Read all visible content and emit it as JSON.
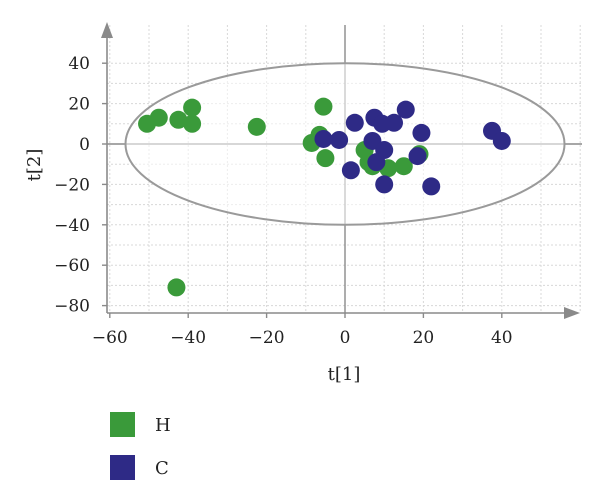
{
  "chart_data": {
    "type": "scatter",
    "title": "",
    "xlabel": "t[1]",
    "ylabel": "t[2]",
    "xlim": [
      -60,
      60
    ],
    "ylim": [
      -80,
      40
    ],
    "xticks": [
      -60,
      -40,
      -20,
      0,
      20,
      40
    ],
    "yticks": [
      40,
      20,
      0,
      -20,
      -40,
      -60,
      -80
    ],
    "grid": true,
    "confidence_ellipse": {
      "center": [
        0,
        0
      ],
      "radii": [
        56,
        40
      ]
    },
    "legend_position": "bottom-left",
    "series": [
      {
        "name": "H",
        "color": "#3a9a3a",
        "points": [
          {
            "x": -50.5,
            "y": 10
          },
          {
            "x": -47.5,
            "y": 13
          },
          {
            "x": -42.5,
            "y": 12
          },
          {
            "x": -39,
            "y": 18
          },
          {
            "x": -39,
            "y": 10
          },
          {
            "x": -22.5,
            "y": 8.5
          },
          {
            "x": -5.5,
            "y": 18.5
          },
          {
            "x": -8.5,
            "y": 0.5
          },
          {
            "x": -6.5,
            "y": 4.5
          },
          {
            "x": -5,
            "y": -7
          },
          {
            "x": 5,
            "y": -3
          },
          {
            "x": 6,
            "y": -9
          },
          {
            "x": 7,
            "y": -11
          },
          {
            "x": 11,
            "y": -12
          },
          {
            "x": 15,
            "y": -11
          },
          {
            "x": 19,
            "y": -5
          },
          {
            "x": -43,
            "y": -71
          }
        ]
      },
      {
        "name": "C",
        "color": "#2e2a86",
        "points": [
          {
            "x": -5.5,
            "y": 2.5
          },
          {
            "x": -1.5,
            "y": 2
          },
          {
            "x": 2.5,
            "y": 10.5
          },
          {
            "x": 7.5,
            "y": 13
          },
          {
            "x": 9.5,
            "y": 10
          },
          {
            "x": 12.5,
            "y": 10.5
          },
          {
            "x": 15.5,
            "y": 17
          },
          {
            "x": 19.5,
            "y": 5.5
          },
          {
            "x": 7,
            "y": 1.5
          },
          {
            "x": 10,
            "y": -3
          },
          {
            "x": 8,
            "y": -9
          },
          {
            "x": 18.5,
            "y": -6
          },
          {
            "x": 1.5,
            "y": -13
          },
          {
            "x": 10,
            "y": -20
          },
          {
            "x": 22,
            "y": -21
          },
          {
            "x": 37.5,
            "y": 6.5
          },
          {
            "x": 40,
            "y": 1.5
          }
        ]
      }
    ]
  }
}
